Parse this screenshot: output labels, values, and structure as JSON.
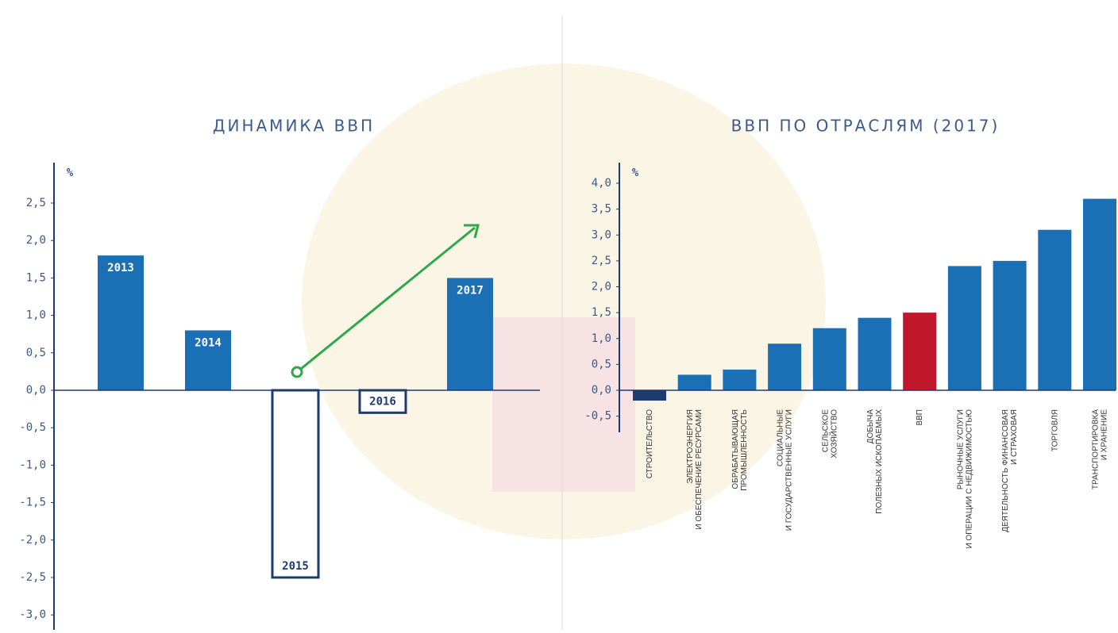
{
  "chart_data": [
    {
      "type": "bar",
      "title": "ДИНАМИКА ВВП",
      "y_label": "%",
      "categories": [
        "2013",
        "2014",
        "2015",
        "2016",
        "2017"
      ],
      "values": [
        1.8,
        0.8,
        -2.5,
        -0.3,
        1.5
      ],
      "colors": [
        "#1a6fb5",
        "#1a6fb5",
        "#ffffff",
        "#ffffff",
        "#1a6fb5"
      ],
      "edgecolor": "#1f3a6e",
      "ylim": [
        -3.2,
        3.0
      ],
      "yticks": [
        {
          "value": 2.5,
          "label": "2,5"
        },
        {
          "value": 2.0,
          "label": "2,0"
        },
        {
          "value": 1.5,
          "label": "1,5"
        },
        {
          "value": 1.0,
          "label": "1,0"
        },
        {
          "value": 0.5,
          "label": "0,5"
        },
        {
          "value": 0,
          "label": "0,0"
        },
        {
          "value": -0.5,
          "label": "-0,5"
        },
        {
          "value": -1.0,
          "label": "-1,0"
        },
        {
          "value": -1.5,
          "label": "-1,5"
        },
        {
          "value": -2.0,
          "label": "-2,0"
        },
        {
          "value": -2.5,
          "label": "-2,5"
        },
        {
          "value": -3.0,
          "label": "-3,0"
        }
      ]
    },
    {
      "type": "bar",
      "title": "ВВП ПО ОТРАСЛЯМ (2017)",
      "y_label": "%",
      "categories": [
        [
          "СТРОИТЕЛЬСТВО"
        ],
        [
          "ЭЛЕКТРОЭНЕРГИЯ",
          "И ОБЕСПЕЧЕНИЕ РЕСУРСАМИ"
        ],
        [
          "ОБРАБАТЫВАЮЩАЯ",
          "ПРОМЫШЛЕННОСТЬ"
        ],
        [
          "СОЦИАЛЬНЫЕ",
          "И ГОСУДАРСТВЕННЫЕ УСЛУГИ"
        ],
        [
          "СЕЛЬСКОЕ",
          "ХОЗЯЙСТВО"
        ],
        [
          "ДОБЫЧА",
          "ПОЛЕЗНЫХ ИСКОПАЕМЫХ"
        ],
        [
          "ВВП"
        ],
        [
          "РЫНОЧНЫЕ УСЛУГИ",
          "И ОПЕРАЦИИ С НЕДВИЖИМОСТЬЮ"
        ],
        [
          "ДЕЯТЕЛЬНОСТЬ ФИНАНСОВАЯ",
          "И СТРАХОВАЯ"
        ],
        [
          "ТОРГОВЛЯ"
        ],
        [
          "ТРАНСПОРТИРОВКА",
          "И ХРАНЕНИЕ"
        ]
      ],
      "values": [
        -0.2,
        0.3,
        0.4,
        0.9,
        1.2,
        1.4,
        1.5,
        2.4,
        2.5,
        3.1,
        3.7
      ],
      "colors": [
        "#1f3a6e",
        "#1a6fb5",
        "#1a6fb5",
        "#1a6fb5",
        "#1a6fb5",
        "#1a6fb5",
        "#c0182a",
        "#1a6fb5",
        "#1a6fb5",
        "#1a6fb5",
        "#1a6fb5"
      ],
      "ylim": [
        -0.8,
        4.3
      ],
      "yticks": [
        {
          "value": 4.0,
          "label": "4,0"
        },
        {
          "value": 3.5,
          "label": "3,5"
        },
        {
          "value": 3.0,
          "label": "3,0"
        },
        {
          "value": 2.5,
          "label": "2,5"
        },
        {
          "value": 2.0,
          "label": "2,0"
        },
        {
          "value": 1.5,
          "label": "1,5"
        },
        {
          "value": 1.0,
          "label": "1,0"
        },
        {
          "value": 0.5,
          "label": "0,5"
        },
        {
          "value": 0,
          "label": "0,0"
        },
        {
          "value": -0.5,
          "label": "-0,5"
        }
      ]
    }
  ]
}
